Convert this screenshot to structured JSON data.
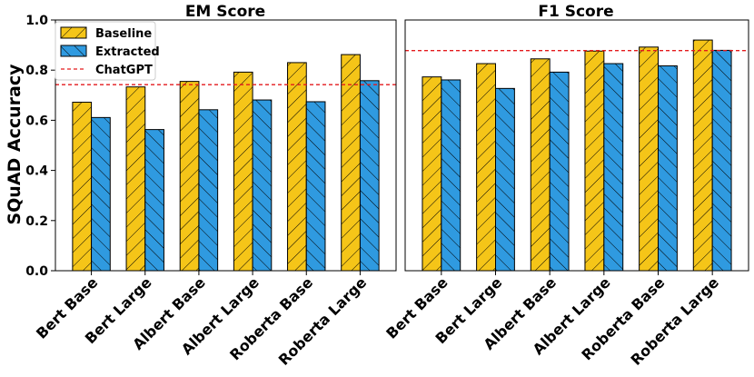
{
  "chart_data": [
    {
      "type": "bar",
      "title": "EM Score",
      "ylabel": "SQuAD Accuracy",
      "ylim": [
        0,
        1.0
      ],
      "yticks": [
        "0.0",
        "0.2",
        "0.4",
        "0.6",
        "0.8",
        "1.0"
      ],
      "categories": [
        "Bert Base",
        "Bert Large",
        "Albert Base",
        "Albert Large",
        "Roberta Base",
        "Roberta Large"
      ],
      "series": [
        {
          "name": "Baseline",
          "color": "#f5c518",
          "hatch": "forward-diagonal",
          "values": [
            0.672,
            0.733,
            0.755,
            0.792,
            0.83,
            0.862
          ]
        },
        {
          "name": "Extracted",
          "color": "#2f9ae0",
          "hatch": "back-diagonal",
          "values": [
            0.611,
            0.563,
            0.642,
            0.681,
            0.674,
            0.758
          ]
        }
      ],
      "reference_line": {
        "name": "ChatGPT",
        "value": 0.742,
        "color": "#e31a1c",
        "style": "dashed"
      },
      "legend": {
        "position": "top-left",
        "entries": [
          "Baseline",
          "Extracted",
          "ChatGPT"
        ]
      },
      "grid": false
    },
    {
      "type": "bar",
      "title": "F1 Score",
      "ylim": [
        0,
        1.0
      ],
      "categories": [
        "Bert Base",
        "Bert Large",
        "Albert Base",
        "Albert Large",
        "Roberta Base",
        "Roberta Large"
      ],
      "series": [
        {
          "name": "Baseline",
          "color": "#f5c518",
          "hatch": "forward-diagonal",
          "values": [
            0.773,
            0.826,
            0.845,
            0.876,
            0.892,
            0.92
          ]
        },
        {
          "name": "Extracted",
          "color": "#2f9ae0",
          "hatch": "back-diagonal",
          "values": [
            0.761,
            0.727,
            0.792,
            0.826,
            0.817,
            0.879
          ]
        }
      ],
      "reference_line": {
        "name": "ChatGPT",
        "value": 0.878,
        "color": "#e31a1c",
        "style": "dashed"
      },
      "grid": false
    }
  ]
}
